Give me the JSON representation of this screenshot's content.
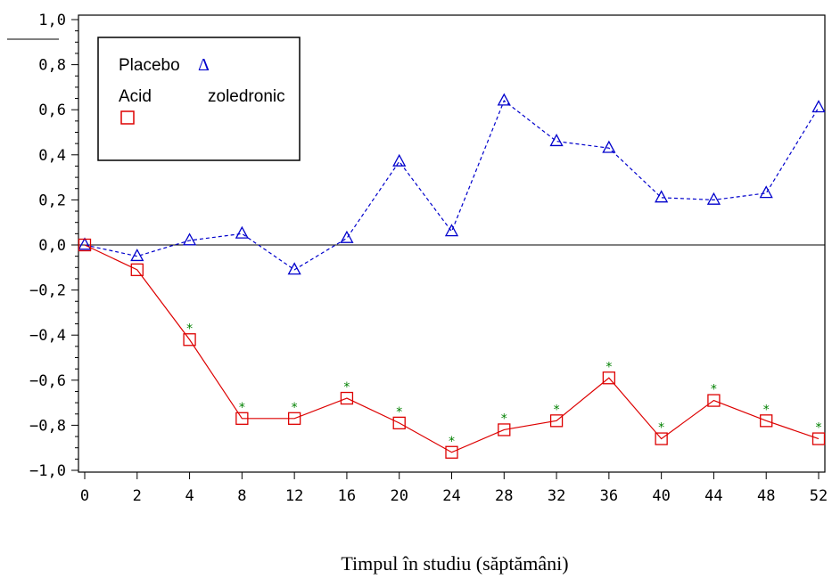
{
  "chart_data": {
    "type": "line",
    "categories": [
      "0",
      "2",
      "4",
      "8",
      "12",
      "16",
      "20",
      "24",
      "28",
      "32",
      "36",
      "40",
      "44",
      "48",
      "52"
    ],
    "y_tick_labels": [
      "1,0",
      "0,8",
      "0,6",
      "0,4",
      "0,2",
      "0,0",
      "−0,2",
      "−0,4",
      "−0,6",
      "−0,8",
      "−1,0"
    ],
    "y_ticks": [
      1.0,
      0.8,
      0.6,
      0.4,
      0.2,
      0.0,
      -0.2,
      -0.4,
      -0.6,
      -0.8,
      -1.0
    ],
    "ylim": [
      -1.0,
      1.0
    ],
    "xlabel": "Timpul în studiu (săptămâni)",
    "ylabel": "",
    "legend": {
      "placebo_label": "Placebo",
      "placebo_symbol": "Δ",
      "acid_label_1": "Acid",
      "acid_label_2": "zoledronic",
      "placement": "top-left"
    },
    "series": [
      {
        "name": "Placebo",
        "color": "#0000cc",
        "marker": "triangle",
        "dash": true,
        "values": [
          0.0,
          -0.05,
          0.02,
          0.05,
          -0.11,
          0.03,
          0.37,
          0.06,
          0.64,
          0.46,
          0.43,
          0.21,
          0.2,
          0.23,
          0.61
        ]
      },
      {
        "name": "Acid zoledronic",
        "color": "#dd0000",
        "marker": "square",
        "dash": false,
        "values": [
          0.0,
          -0.11,
          -0.42,
          -0.77,
          -0.77,
          -0.68,
          -0.79,
          -0.92,
          -0.82,
          -0.78,
          -0.59,
          -0.86,
          -0.69,
          -0.78,
          -0.86
        ],
        "significant": [
          false,
          false,
          true,
          true,
          true,
          true,
          true,
          true,
          true,
          true,
          true,
          true,
          true,
          true,
          true
        ]
      }
    ],
    "significance_marker": "*",
    "significance_color": "#008000",
    "zero_line": true
  }
}
